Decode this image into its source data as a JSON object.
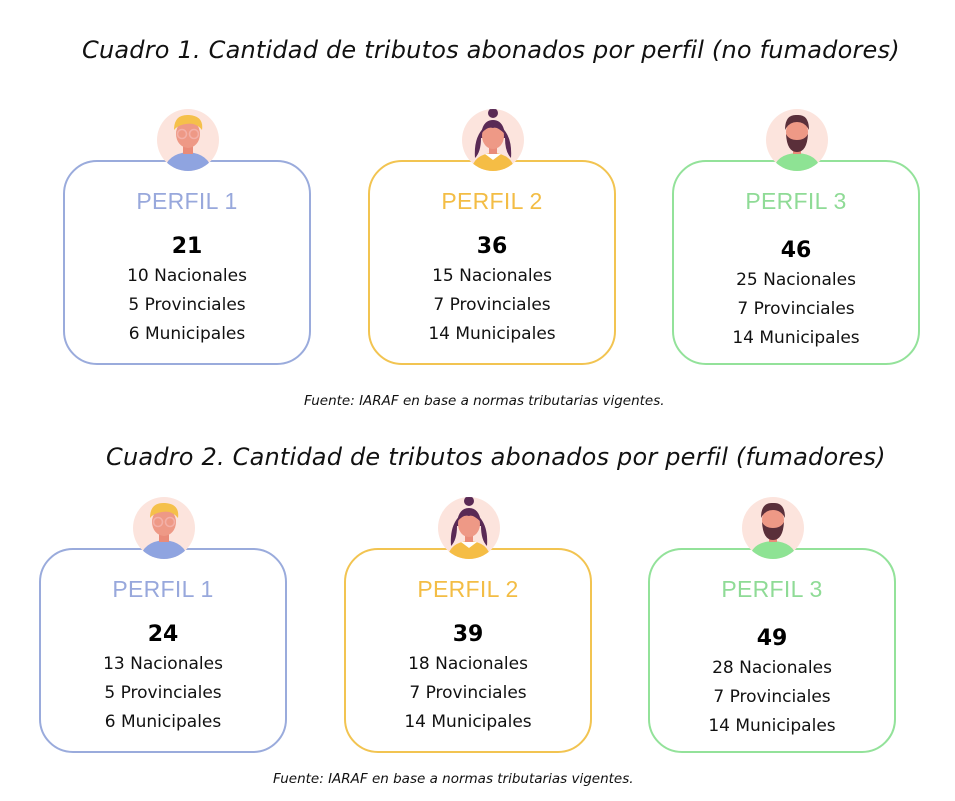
{
  "sections": [
    {
      "title": "Cuadro 1. Cantidad de tributos abonados por perfil (no fumadores)",
      "source": "Fuente: IARAF en base a normas tributarias vigentes.",
      "profiles": [
        {
          "label": "PERFIL 1",
          "total": "21",
          "lines": [
            "10 Nacionales",
            "5  Provinciales",
            "6 Municipales"
          ],
          "avatar": "blonde-man-glasses-icon",
          "color": "#9aabdc"
        },
        {
          "label": "PERFIL 2",
          "total": "36",
          "lines": [
            "15 Nacionales",
            "7 Provinciales",
            "14 Municipales"
          ],
          "avatar": "woman-dark-hair-icon",
          "color": "#f2c451"
        },
        {
          "label": "PERFIL 3",
          "total": "46",
          "lines": [
            "25 Nacionales",
            "7 Provinciales",
            "14 Municipales"
          ],
          "avatar": "bearded-man-icon",
          "color": "#93e29a"
        }
      ]
    },
    {
      "title": "Cuadro 2. Cantidad de tributos abonados por perfil (fumadores)",
      "source": "Fuente: IARAF en base a normas tributarias vigentes.",
      "profiles": [
        {
          "label": "PERFIL 1",
          "total": "24",
          "lines": [
            "13 Nacionales",
            "5  Provinciales",
            "6 Municipales"
          ],
          "avatar": "blonde-man-glasses-icon",
          "color": "#9aabdc"
        },
        {
          "label": "PERFIL 2",
          "total": "39",
          "lines": [
            "18 Nacionales",
            "7 Provinciales",
            "14 Municipales"
          ],
          "avatar": "woman-dark-hair-icon",
          "color": "#f2c451"
        },
        {
          "label": "PERFIL 3",
          "total": "49",
          "lines": [
            "28 Nacionales",
            "7 Provinciales",
            "14 Municipales"
          ],
          "avatar": "bearded-man-icon",
          "color": "#93e29a"
        }
      ]
    }
  ]
}
